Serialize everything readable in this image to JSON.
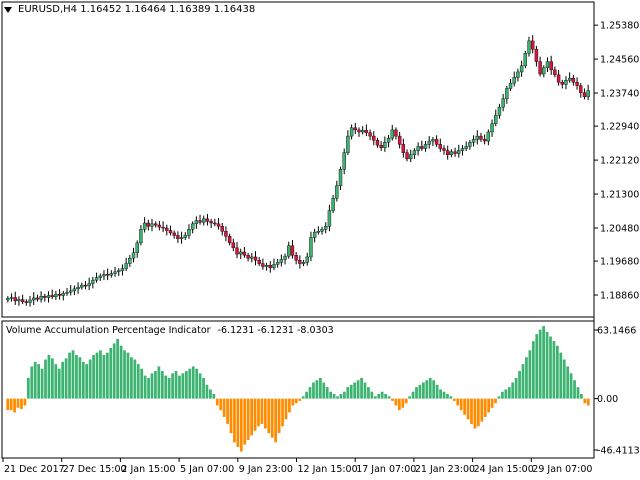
{
  "window": {
    "symbol_title": "EURUSD,H4",
    "ohlc": [
      "1.16452",
      "1.16464",
      "1.16389",
      "1.16438"
    ]
  },
  "indicator": {
    "name": "Volume Accumulation Percentage Indicator",
    "values": [
      "-6.1231",
      "-6.1231",
      "-8.0303"
    ],
    "scale_labels": [
      "63.1466",
      "0.00",
      "-46.4113"
    ]
  },
  "price_axis_labels": [
    "1.25380",
    "1.24560",
    "1.23740",
    "1.22940",
    "1.22120",
    "1.21300",
    "1.20480",
    "1.19680",
    "1.18860"
  ],
  "time_axis_labels": [
    "21 Dec 2017",
    "27 Dec 15:00",
    "2 Jan 15:00",
    "5 Jan 07:00",
    "9 Jan 23:00",
    "12 Jan 15:00",
    "17 Jan 07:00",
    "21 Jan 23:00",
    "24 Jan 15:00",
    "29 Jan 07:00"
  ],
  "colors": {
    "bull_candle": "#3cb371",
    "bear_candle": "#dc143c",
    "wick": "#000000",
    "hist_positive": "#3cb371",
    "hist_negative": "#ff8c00",
    "grid": "#000000"
  },
  "chart_data": [
    {
      "type": "candlestick",
      "title": "EURUSD,H4",
      "ylim": [
        1.1845,
        1.2565
      ],
      "closes": [
        1.1878,
        1.188,
        1.1872,
        1.1875,
        1.187,
        1.1868,
        1.1874,
        1.1879,
        1.1876,
        1.1883,
        1.188,
        1.1885,
        1.1882,
        1.1888,
        1.1885,
        1.189,
        1.1893,
        1.1896,
        1.1901,
        1.1905,
        1.191,
        1.1908,
        1.1914,
        1.1922,
        1.1928,
        1.1932,
        1.1936,
        1.1934,
        1.1938,
        1.1942,
        1.1945,
        1.195,
        1.1962,
        1.1975,
        1.1988,
        1.2012,
        1.2045,
        1.206,
        1.2052,
        1.2058,
        1.2055,
        1.205,
        1.2048,
        1.2042,
        1.2036,
        1.203,
        1.2022,
        1.2025,
        1.203,
        1.2045,
        1.2058,
        1.2066,
        1.2062,
        1.207,
        1.2064,
        1.206,
        1.2058,
        1.2052,
        1.204,
        1.2028,
        1.2012,
        1.2,
        1.1985,
        1.199,
        1.1982,
        1.1975,
        1.1978,
        1.197,
        1.1962,
        1.1955,
        1.1958,
        1.1952,
        1.196,
        1.1965,
        1.1972,
        1.198,
        1.2005,
        1.1982,
        1.197,
        1.1962,
        1.1965,
        1.1978,
        1.2025,
        1.2038,
        1.204,
        1.2045,
        1.2052,
        1.209,
        1.212,
        1.215,
        1.219,
        1.223,
        1.227,
        1.229,
        1.2285,
        1.228,
        1.2284,
        1.2278,
        1.227,
        1.226,
        1.2248,
        1.2242,
        1.2255,
        1.2265,
        1.2285,
        1.227,
        1.225,
        1.223,
        1.2215,
        1.2225,
        1.2235,
        1.2245,
        1.224,
        1.225,
        1.2258,
        1.2262,
        1.225,
        1.224,
        1.2235,
        1.2225,
        1.2232,
        1.2228,
        1.2235,
        1.224,
        1.2245,
        1.2255,
        1.2262,
        1.227,
        1.2262,
        1.2258,
        1.228,
        1.23,
        1.232,
        1.234,
        1.236,
        1.2385,
        1.2398,
        1.2412,
        1.2425,
        1.244,
        1.247,
        1.25,
        1.248,
        1.245,
        1.242,
        1.2435,
        1.245,
        1.243,
        1.2418,
        1.24,
        1.2395,
        1.2405,
        1.241,
        1.24,
        1.2392,
        1.2375,
        1.2365,
        1.238
      ]
    },
    {
      "type": "bar",
      "title": "Volume Accumulation Percentage Indicator",
      "ylim": [
        -46.4113,
        63.1466
      ],
      "values": [
        -10,
        -10,
        -12,
        -8,
        -9,
        -6,
        18,
        28,
        32,
        30,
        26,
        34,
        38,
        35,
        30,
        26,
        32,
        35,
        40,
        42,
        38,
        36,
        32,
        30,
        34,
        38,
        40,
        42,
        38,
        40,
        44,
        48,
        52,
        46,
        42,
        40,
        36,
        34,
        30,
        26,
        20,
        18,
        22,
        24,
        28,
        24,
        20,
        18,
        22,
        24,
        20,
        22,
        24,
        26,
        28,
        26,
        22,
        18,
        12,
        8,
        4,
        -6,
        -10,
        -16,
        -22,
        -30,
        -38,
        -42,
        -46,
        -40,
        -36,
        -32,
        -28,
        -24,
        -22,
        -26,
        -30,
        -34,
        -38,
        -30,
        -24,
        -18,
        -12,
        -6,
        -4,
        -2,
        2,
        6,
        10,
        14,
        16,
        18,
        14,
        10,
        6,
        4,
        2,
        4,
        6,
        10,
        12,
        14,
        16,
        18,
        14,
        10,
        6,
        2,
        4,
        6,
        4,
        2,
        -2,
        -6,
        -10,
        -8,
        -4,
        2,
        6,
        10,
        12,
        14,
        16,
        18,
        16,
        12,
        8,
        6,
        4,
        2,
        -2,
        -6,
        -10,
        -14,
        -18,
        -22,
        -26,
        -24,
        -20,
        -16,
        -12,
        -8,
        -4,
        2,
        6,
        8,
        10,
        14,
        18,
        24,
        30,
        36,
        42,
        50,
        56,
        60,
        63,
        58,
        54,
        50,
        46,
        40,
        34,
        28,
        22,
        16,
        10,
        4,
        -4,
        -6
      ]
    }
  ]
}
